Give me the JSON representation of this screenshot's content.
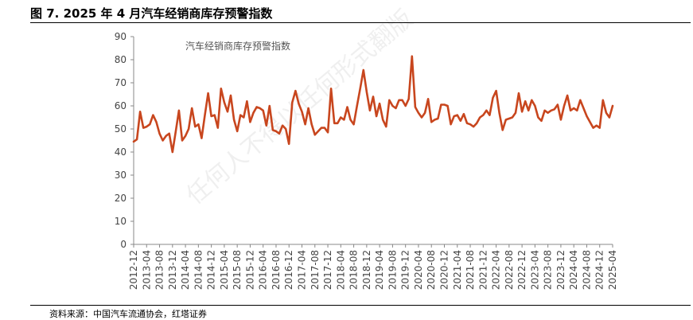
{
  "figure_title": "图 7. 2025 年 4 月汽车经销商库存预警指数",
  "source": "资料来源：中国汽车流通协会，红塔证券",
  "watermark": "任何人不得以任何形式翻版",
  "colors": {
    "line": "#C8461E",
    "axis": "#888888",
    "text": "#444444"
  },
  "chart_data": {
    "type": "line",
    "legend_label": "汽车经销商库存预警指数",
    "legend_placement": "top-left-inside",
    "grid": false,
    "ylim": [
      0,
      90
    ],
    "y_ticks": [
      0,
      10,
      20,
      30,
      40,
      50,
      60,
      70,
      80,
      90
    ],
    "x_start": "2012-12",
    "x_end": "2025-04",
    "x_tick_labels": [
      "2012-12",
      "2013-04",
      "2013-08",
      "2013-12",
      "2014-04",
      "2014-08",
      "2014-12",
      "2015-04",
      "2015-08",
      "2015-12",
      "2016-04",
      "2016-08",
      "2016-12",
      "2017-04",
      "2017-08",
      "2017-12",
      "2018-04",
      "2018-08",
      "2018-12",
      "2019-04",
      "2019-08",
      "2019-12",
      "2020-04",
      "2020-08",
      "2020-12",
      "2021-04",
      "2021-08",
      "2021-12",
      "2022-04",
      "2022-08",
      "2022-12",
      "2023-04",
      "2023-08",
      "2023-12",
      "2024-04",
      "2024-08",
      "2024-12",
      "2025-04"
    ],
    "values": [
      44.5,
      45.5,
      57.5,
      50.5,
      51,
      52,
      56,
      53,
      48,
      45,
      47,
      48,
      40,
      49,
      58,
      45,
      47,
      50,
      59,
      51,
      52,
      46,
      56,
      65.5,
      55.5,
      56,
      50.5,
      67.5,
      61.5,
      57.5,
      64.5,
      54,
      49,
      56,
      55,
      62,
      53,
      57,
      59.5,
      59,
      58,
      51.5,
      60,
      49.5,
      49,
      48,
      51.5,
      50,
      43.5,
      61.5,
      66.5,
      61,
      57.5,
      52,
      59,
      52,
      47.5,
      49,
      50.5,
      50.5,
      48.5,
      67.5,
      52.5,
      52.5,
      55,
      54,
      59.5,
      54,
      52,
      60,
      67.5,
      75.5,
      66,
      58,
      64,
      55.5,
      61,
      54,
      51,
      62.5,
      60,
      59,
      62.5,
      62.5,
      60,
      63,
      81.5,
      59.5,
      57,
      55,
      57,
      63,
      53,
      54,
      54.5,
      60.5,
      60.5,
      60,
      52,
      55.5,
      56,
      53.5,
      56.5,
      52.5,
      52,
      51,
      52.5,
      55,
      56,
      58,
      56,
      63.5,
      66.5,
      57,
      49.5,
      54,
      54.5,
      55,
      57,
      65.5,
      57.5,
      62,
      58,
      62.5,
      60,
      55,
      53.5,
      58,
      57,
      58,
      58.5,
      60.5,
      54,
      60,
      64.5,
      58,
      59,
      58,
      62.5,
      59,
      55.5,
      53,
      50.5,
      51.5,
      50.5,
      62.5,
      57,
      55,
      60
    ]
  }
}
